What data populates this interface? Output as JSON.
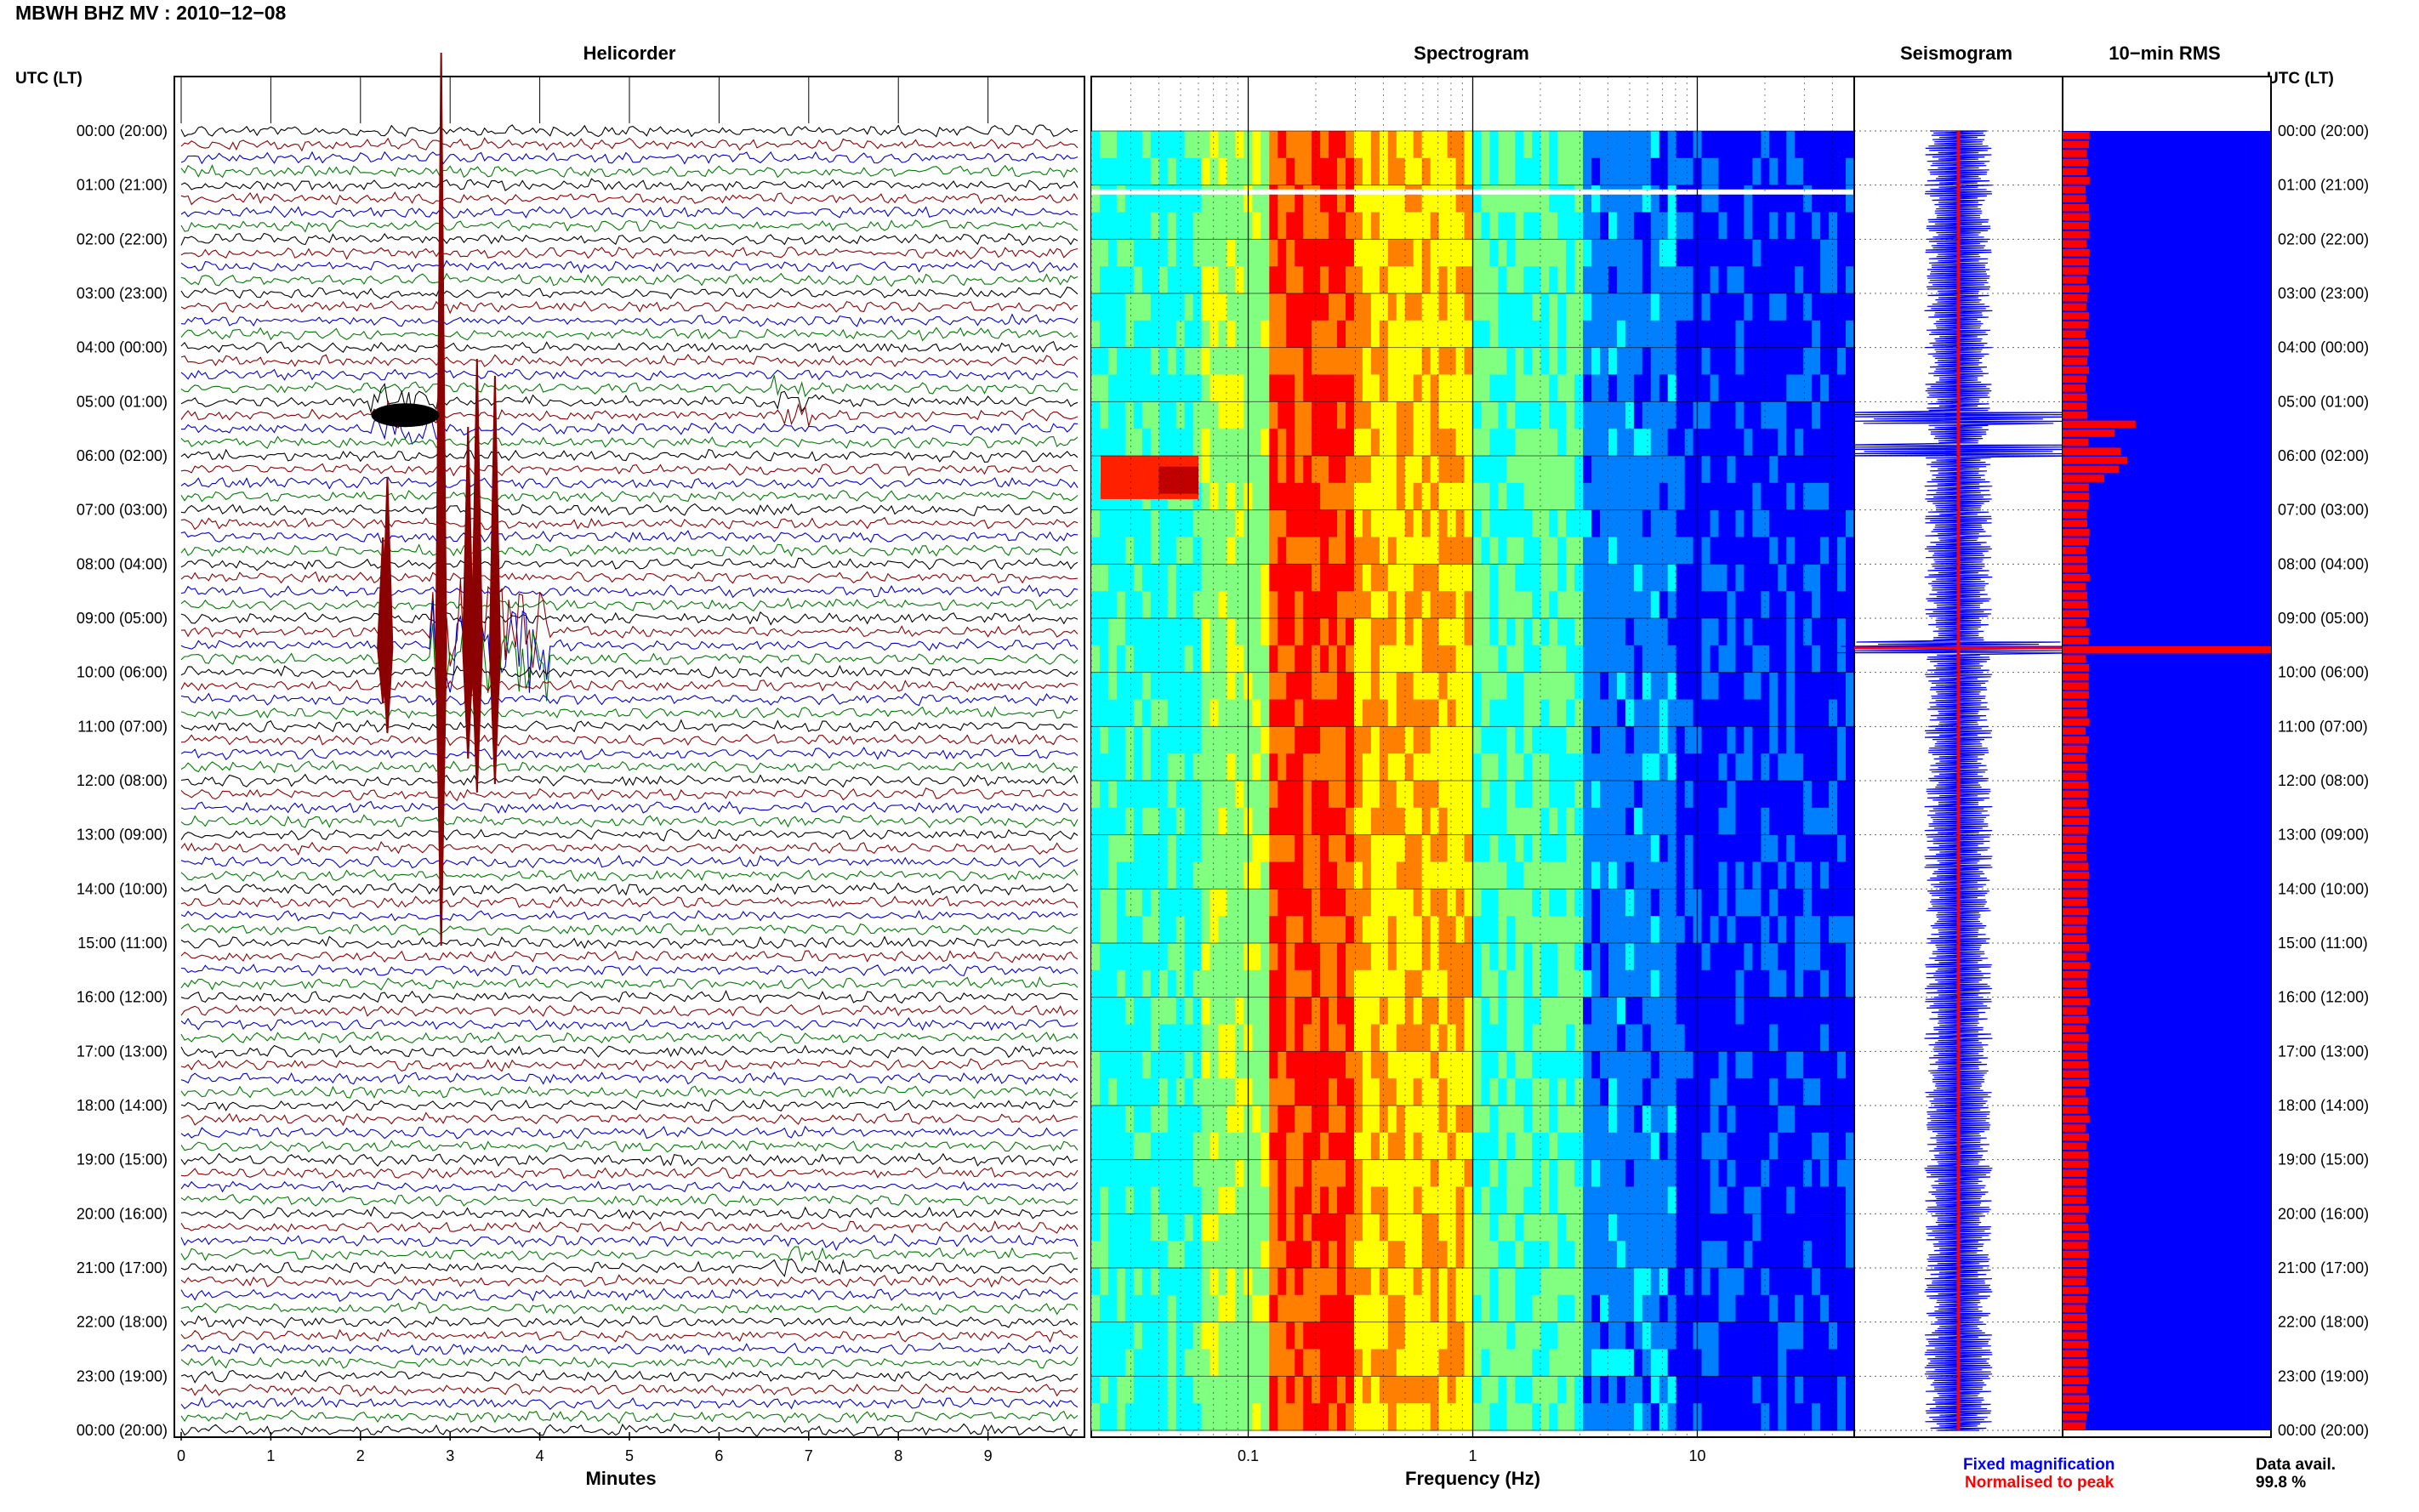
{
  "header": {
    "title": "MBWH BHZ MV : 2010−12−08",
    "utc_label": "UTC (LT)"
  },
  "panels": {
    "helicorder": "Helicorder",
    "spectrogram": "Spectrogram",
    "seismogram": "Seismogram",
    "rms": "10−min RMS"
  },
  "legend": {
    "fixed": "Fixed magnification",
    "normalised": "Normalised to peak",
    "fixed_color": "#0000ff",
    "normalised_color": "#ff0000"
  },
  "data_availability": {
    "label": "Data avail.",
    "value": "99.8 %"
  },
  "chart_data": [
    {
      "type": "line",
      "panel": "helicorder",
      "xlabel": "Minutes",
      "x_ticks": [
        "0",
        "1",
        "2",
        "3",
        "4",
        "5",
        "6",
        "7",
        "8",
        "9"
      ],
      "xlim": [
        0,
        10
      ],
      "row_labels": [
        "00:00 (20:00)",
        "01:00 (21:00)",
        "02:00 (22:00)",
        "03:00 (23:00)",
        "04:00 (00:00)",
        "05:00 (01:00)",
        "06:00 (02:00)",
        "07:00 (03:00)",
        "08:00 (04:00)",
        "09:00 (05:00)",
        "10:00 (06:00)",
        "11:00 (07:00)",
        "12:00 (08:00)",
        "13:00 (09:00)",
        "14:00 (10:00)",
        "15:00 (11:00)",
        "16:00 (12:00)",
        "17:00 (13:00)",
        "18:00 (14:00)",
        "19:00 (15:00)",
        "20:00 (16:00)",
        "21:00 (17:00)",
        "22:00 (18:00)",
        "23:00 (19:00)",
        "00:00 (20:00)"
      ],
      "trace_colors": [
        "#000000",
        "#8b0000",
        "#0000cc",
        "#007a00"
      ],
      "events": [
        {
          "start_min": 2.1,
          "end_min": 2.9,
          "hour": 5.25,
          "amplitude": "large"
        },
        {
          "start_min": 2.8,
          "end_min": 4.1,
          "hour": 9.5,
          "amplitude": "very large"
        },
        {
          "start_min": 6.6,
          "end_min": 7.1,
          "hour": 5.1,
          "amplitude": "medium"
        },
        {
          "start_min": 6.6,
          "end_min": 7.4,
          "hour": 20.75,
          "amplitude": "small"
        }
      ]
    },
    {
      "type": "heatmap",
      "panel": "spectrogram",
      "xlabel": "Frequency (Hz)",
      "x_scale": "log",
      "xlim": [
        0.02,
        50
      ],
      "x_ticks": [
        "0.1",
        "1",
        "10"
      ],
      "colormap": [
        "#00008f",
        "#0000ff",
        "#0080ff",
        "#00ffff",
        "#80ff80",
        "#ffff00",
        "#ff8000",
        "#ff0000",
        "#800000"
      ],
      "dominant_band_hz": [
        0.12,
        0.3
      ]
    },
    {
      "type": "line",
      "panel": "seismogram",
      "series_colors": [
        "#0000ff",
        "#ff0000"
      ],
      "events_hours": [
        5.3,
        5.9,
        9.55
      ]
    },
    {
      "type": "bar",
      "panel": "10-min RMS",
      "orientation": "horizontal",
      "bars_per_hour": 6,
      "hours": 24,
      "baseline_level": 0.12,
      "peaks": [
        {
          "hour": 5.3,
          "level": 0.35
        },
        {
          "hour": 5.5,
          "level": 0.25
        },
        {
          "hour": 5.8,
          "level": 0.28
        },
        {
          "hour": 6.0,
          "level": 0.31
        },
        {
          "hour": 6.2,
          "level": 0.27
        },
        {
          "hour": 6.4,
          "level": 0.2
        },
        {
          "hour": 9.55,
          "level": 1.0
        }
      ],
      "bar_color": "#ff0000",
      "background_color": "#0000ff"
    }
  ]
}
